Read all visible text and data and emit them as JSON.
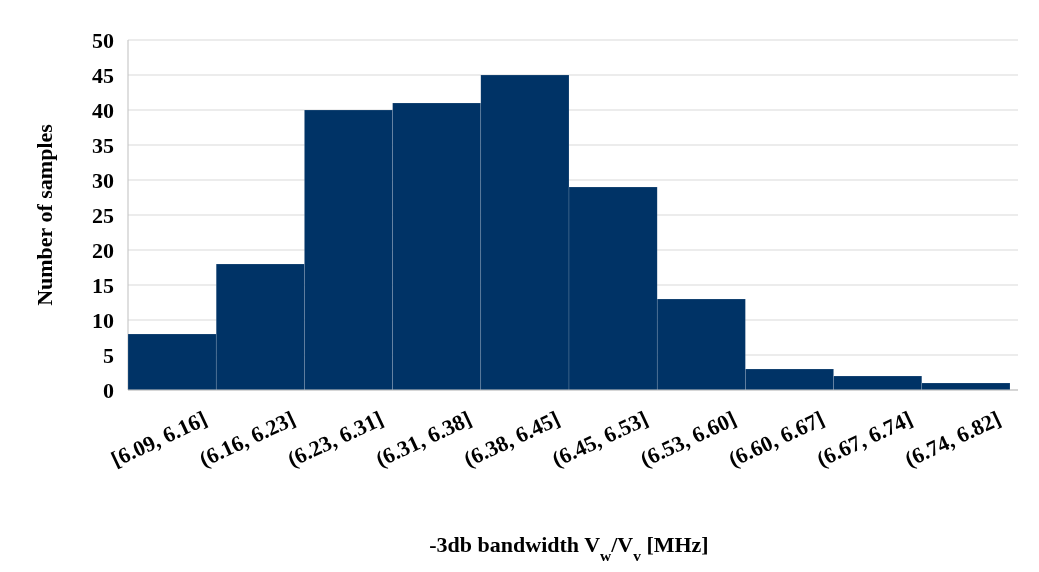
{
  "chart_data": {
    "type": "bar",
    "xlabel": "-3db bandwidth V$_{w}$/V$_{v}$ [MHz]",
    "ylabel": "Number of samples",
    "categories": [
      "[6.09, 6.16]",
      "(6.16, 6.23]",
      "(6.23, 6.31]",
      "(6.31, 6.38]",
      "(6.38, 6.45]",
      "(6.45, 6.53]",
      "(6.53, 6.60]",
      "(6.60, 6.67]",
      "(6.67, 6.74]",
      "(6.74, 6.82]"
    ],
    "values": [
      8,
      18,
      40,
      41,
      45,
      29,
      13,
      3,
      2,
      1
    ],
    "color": "#003366",
    "ylim": [
      0,
      50
    ],
    "yticks": [
      0,
      5,
      10,
      15,
      20,
      25,
      30,
      35,
      40,
      45,
      50
    ],
    "grid": "y"
  }
}
